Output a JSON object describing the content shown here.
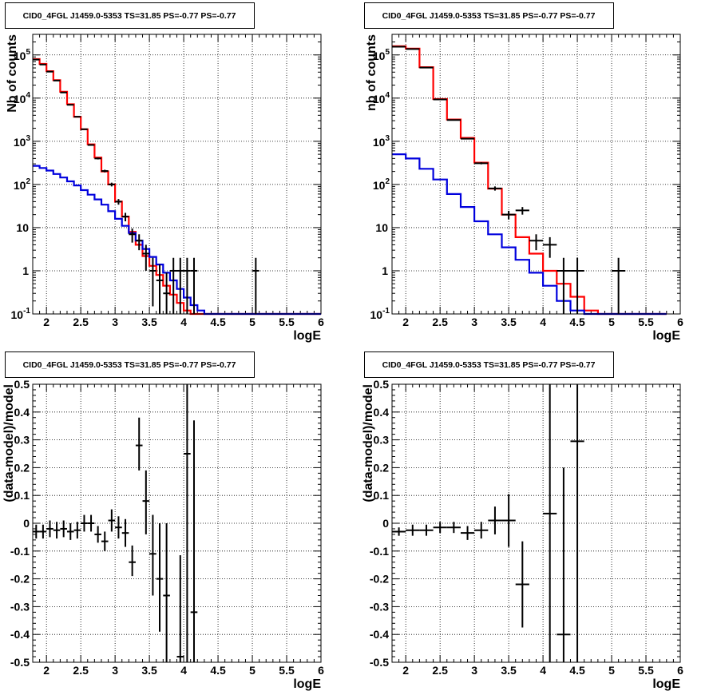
{
  "chart_data": [
    {
      "type": "line",
      "title": "CID0_4FGL J1459.0-5353 TS=31.85 PS=-0.77 PS=-0.77",
      "xlabel": "logE",
      "ylabel": "Nb of counts",
      "xlim": [
        1.8,
        6.0
      ],
      "ylim": [
        0.1,
        300000
      ],
      "ylog": true,
      "grid": true,
      "x_ticks": [
        2,
        2.5,
        3,
        3.5,
        4,
        4.5,
        5,
        5.5,
        6
      ],
      "x_tick_labels": [
        "2",
        "2.5",
        "3",
        "3.5",
        "4",
        "4.5",
        "5",
        "5.5",
        "6"
      ],
      "y_tick_labels": [
        "10^-1",
        "1",
        "10",
        "10^2",
        "10^3",
        "10^4",
        "10^5"
      ],
      "bin_edges": [
        1.8,
        1.9,
        2.0,
        2.1,
        2.2,
        2.3,
        2.4,
        2.5,
        2.6,
        2.7,
        2.8,
        2.9,
        3.0,
        3.1,
        3.2,
        3.3,
        3.4,
        3.5,
        3.6,
        3.7,
        3.8,
        3.9,
        4.0,
        4.1,
        4.2,
        4.3,
        4.4,
        4.5,
        4.6,
        4.7,
        4.8,
        4.9,
        5.0,
        5.1,
        5.2,
        5.3,
        5.4,
        5.5,
        5.6,
        5.7,
        5.8,
        5.9,
        6.0
      ],
      "series": [
        {
          "color": "#ff0000",
          "style": "step",
          "values": [
            80000,
            62000,
            42000,
            26000,
            14000,
            7200,
            3700,
            1900,
            850,
            420,
            200,
            100,
            40,
            18,
            8,
            4,
            2.2,
            1.3,
            0.8,
            0.45,
            0.28,
            0.18,
            0.12,
            0.1,
            0.1,
            0.1,
            0.1,
            0.1,
            0.1,
            0.1,
            0.1,
            0.1,
            0.1,
            0.1,
            0.1,
            0.1,
            0.1,
            0.1,
            0.1,
            0.1,
            0.1,
            0.1
          ]
        },
        {
          "color": "#0000dd",
          "style": "step",
          "values": [
            270,
            240,
            210,
            175,
            145,
            118,
            95,
            74,
            58,
            45,
            34,
            24,
            16,
            11,
            7.5,
            5,
            3.2,
            2.1,
            1.4,
            0.9,
            0.6,
            0.38,
            0.24,
            0.16,
            0.12,
            0.1,
            0.1,
            0.1,
            0.1,
            0.1,
            0.1,
            0.1,
            0.1,
            0.1,
            0.1,
            0.1,
            0.1,
            0.1,
            0.1,
            0.1,
            0.1,
            0.1
          ]
        },
        {
          "color": "#000000",
          "style": "errorbar",
          "points": [
            {
              "x": 1.85,
              "y": 78000,
              "lo": 77500,
              "hi": 78500,
              "dx": 0.05
            },
            {
              "x": 1.95,
              "y": 60000,
              "lo": 59500,
              "hi": 60500,
              "dx": 0.05
            },
            {
              "x": 2.05,
              "y": 41000,
              "lo": 40600,
              "hi": 41400,
              "dx": 0.05
            },
            {
              "x": 2.15,
              "y": 25500,
              "lo": 25200,
              "hi": 25800,
              "dx": 0.05
            },
            {
              "x": 2.25,
              "y": 13500,
              "lo": 13300,
              "hi": 13700,
              "dx": 0.05
            },
            {
              "x": 2.35,
              "y": 7000,
              "lo": 6900,
              "hi": 7100,
              "dx": 0.05
            },
            {
              "x": 2.45,
              "y": 3700,
              "lo": 3640,
              "hi": 3760,
              "dx": 0.05
            },
            {
              "x": 2.55,
              "y": 1900,
              "lo": 1860,
              "hi": 1940,
              "dx": 0.05
            },
            {
              "x": 2.65,
              "y": 820,
              "lo": 790,
              "hi": 850,
              "dx": 0.05
            },
            {
              "x": 2.75,
              "y": 400,
              "lo": 380,
              "hi": 420,
              "dx": 0.05
            },
            {
              "x": 2.85,
              "y": 205,
              "lo": 191,
              "hi": 219,
              "dx": 0.05
            },
            {
              "x": 2.95,
              "y": 100,
              "lo": 90,
              "hi": 110,
              "dx": 0.05
            },
            {
              "x": 3.05,
              "y": 40,
              "lo": 34,
              "hi": 46,
              "dx": 0.05
            },
            {
              "x": 3.15,
              "y": 18,
              "lo": 14,
              "hi": 22,
              "dx": 0.05
            },
            {
              "x": 3.25,
              "y": 7,
              "lo": 4.5,
              "hi": 9.5,
              "dx": 0.05
            },
            {
              "x": 3.35,
              "y": 5,
              "lo": 3,
              "hi": 7,
              "dx": 0.05
            },
            {
              "x": 3.45,
              "y": 2.5,
              "lo": 1,
              "hi": 4,
              "dx": 0.05
            },
            {
              "x": 3.55,
              "y": 1.0,
              "lo": 0.15,
              "hi": 2.0,
              "dx": 0.05
            },
            {
              "x": 3.65,
              "y": 0.6,
              "lo": 0.1,
              "hi": 1.4,
              "dx": 0.05
            },
            {
              "x": 3.75,
              "y": 0.3,
              "lo": 0.1,
              "hi": 0.9,
              "dx": 0.05
            },
            {
              "x": 3.85,
              "y": 1.0,
              "lo": 0.1,
              "hi": 2.0,
              "dx": 0.05
            },
            {
              "x": 3.95,
              "y": 1.0,
              "lo": 0.1,
              "hi": 2.0,
              "dx": 0.05
            },
            {
              "x": 4.05,
              "y": 1.0,
              "lo": 0.1,
              "hi": 2.0,
              "dx": 0.05
            },
            {
              "x": 4.15,
              "y": 1.0,
              "lo": 0.1,
              "hi": 2.0,
              "dx": 0.05
            },
            {
              "x": 5.05,
              "y": 1.0,
              "lo": 0.1,
              "hi": 2.0,
              "dx": 0.05
            }
          ]
        }
      ]
    },
    {
      "type": "line",
      "title": "CID0_4FGL J1459.0-5353 TS=31.85 PS=-0.77 PS=-0.77",
      "xlabel": "logE",
      "ylabel": "nb of counts",
      "xlim": [
        1.8,
        6.0
      ],
      "ylim": [
        0.1,
        300000
      ],
      "ylog": true,
      "grid": true,
      "x_ticks": [
        2,
        2.5,
        3,
        3.5,
        4,
        4.5,
        5,
        5.5,
        6
      ],
      "x_tick_labels": [
        "2",
        "2.5",
        "3",
        "3.5",
        "4",
        "4.5",
        "5",
        "5.5",
        "6"
      ],
      "y_tick_labels": [
        "10^-1",
        "1",
        "10",
        "10^2",
        "10^3",
        "10^4",
        "10^5"
      ],
      "bin_edges": [
        1.8,
        2.0,
        2.2,
        2.4,
        2.6,
        2.8,
        3.0,
        3.2,
        3.4,
        3.6,
        3.8,
        4.0,
        4.2,
        4.4,
        4.6,
        4.8,
        5.0,
        5.2,
        5.4,
        5.6,
        5.8,
        6.0
      ],
      "series": [
        {
          "color": "#ff0000",
          "style": "step",
          "values": [
            160000,
            140000,
            52000,
            9500,
            3200,
            1200,
            320,
            80,
            20,
            6,
            2.5,
            1.0,
            0.5,
            0.25,
            0.12,
            0.1,
            0.1,
            0.1,
            0.1,
            0.1
          ]
        },
        {
          "color": "#0000dd",
          "style": "step",
          "values": [
            500,
            400,
            230,
            130,
            60,
            30,
            14,
            7,
            3.5,
            1.8,
            0.9,
            0.45,
            0.2,
            0.12,
            0.1,
            0.1,
            0.1,
            0.1,
            0.1,
            0.1
          ]
        },
        {
          "color": "#000000",
          "style": "errorbar",
          "points": [
            {
              "x": 1.9,
              "y": 155000,
              "lo": 154000,
              "hi": 156000,
              "dx": 0.1
            },
            {
              "x": 2.1,
              "y": 137000,
              "lo": 136000,
              "hi": 138000,
              "dx": 0.1
            },
            {
              "x": 2.3,
              "y": 51000,
              "lo": 50500,
              "hi": 51500,
              "dx": 0.1
            },
            {
              "x": 2.5,
              "y": 9300,
              "lo": 9200,
              "hi": 9400,
              "dx": 0.1
            },
            {
              "x": 2.7,
              "y": 3100,
              "lo": 3050,
              "hi": 3150,
              "dx": 0.1
            },
            {
              "x": 2.9,
              "y": 1150,
              "lo": 1120,
              "hi": 1180,
              "dx": 0.1
            },
            {
              "x": 3.1,
              "y": 310,
              "lo": 293,
              "hi": 327,
              "dx": 0.1
            },
            {
              "x": 3.3,
              "y": 81,
              "lo": 72,
              "hi": 90,
              "dx": 0.1
            },
            {
              "x": 3.5,
              "y": 20,
              "lo": 15.5,
              "hi": 24.5,
              "dx": 0.1
            },
            {
              "x": 3.7,
              "y": 25,
              "lo": 20,
              "hi": 30,
              "dx": 0.1
            },
            {
              "x": 3.9,
              "y": 5,
              "lo": 3,
              "hi": 7,
              "dx": 0.1
            },
            {
              "x": 4.1,
              "y": 4,
              "lo": 2,
              "hi": 6,
              "dx": 0.1
            },
            {
              "x": 4.3,
              "y": 1.0,
              "lo": 0.1,
              "hi": 2.0,
              "dx": 0.1
            },
            {
              "x": 4.5,
              "y": 1.0,
              "lo": 0.1,
              "hi": 2.0,
              "dx": 0.1
            },
            {
              "x": 5.1,
              "y": 1.0,
              "lo": 0.1,
              "hi": 2.0,
              "dx": 0.1
            }
          ]
        }
      ]
    },
    {
      "type": "scatter",
      "title": "CID0_4FGL J1459.0-5353 TS=31.85 PS=-0.77 PS=-0.77",
      "xlabel": "logE",
      "ylabel": "(data-model)/model",
      "xlim": [
        1.8,
        6.0
      ],
      "ylim": [
        -0.5,
        0.5
      ],
      "grid": true,
      "x_ticks": [
        2,
        2.5,
        3,
        3.5,
        4,
        4.5,
        5,
        5.5,
        6
      ],
      "x_tick_labels": [
        "2",
        "2.5",
        "3",
        "3.5",
        "4",
        "4.5",
        "5",
        "5.5",
        "6"
      ],
      "y_ticks": [
        -0.5,
        -0.4,
        -0.3,
        -0.2,
        -0.1,
        0,
        0.1,
        0.2,
        0.3,
        0.4,
        0.5
      ],
      "y_tick_labels": [
        "-0.5",
        "-0.4",
        "-0.3",
        "-0.2",
        "-0.1",
        "0",
        "0.1",
        "0.2",
        "0.3",
        "0.4",
        "0.5"
      ],
      "series": [
        {
          "color": "#000000",
          "style": "errorbar",
          "points": [
            {
              "x": 1.85,
              "y": -0.03,
              "lo": -0.055,
              "hi": -0.005,
              "dx": 0.05
            },
            {
              "x": 1.95,
              "y": -0.03,
              "lo": -0.055,
              "hi": -0.005,
              "dx": 0.05
            },
            {
              "x": 2.05,
              "y": -0.02,
              "lo": -0.05,
              "hi": 0.01,
              "dx": 0.05
            },
            {
              "x": 2.15,
              "y": -0.025,
              "lo": -0.055,
              "hi": 0.005,
              "dx": 0.05
            },
            {
              "x": 2.25,
              "y": -0.02,
              "lo": -0.05,
              "hi": 0.01,
              "dx": 0.05
            },
            {
              "x": 2.35,
              "y": -0.03,
              "lo": -0.06,
              "hi": 0.0,
              "dx": 0.05
            },
            {
              "x": 2.45,
              "y": -0.025,
              "lo": -0.055,
              "hi": 0.005,
              "dx": 0.05
            },
            {
              "x": 2.55,
              "y": 0.0,
              "lo": -0.03,
              "hi": 0.03,
              "dx": 0.05
            },
            {
              "x": 2.65,
              "y": 0.0,
              "lo": -0.03,
              "hi": 0.03,
              "dx": 0.05
            },
            {
              "x": 2.75,
              "y": -0.04,
              "lo": -0.07,
              "hi": -0.01,
              "dx": 0.05
            },
            {
              "x": 2.85,
              "y": -0.065,
              "lo": -0.1,
              "hi": -0.03,
              "dx": 0.05
            },
            {
              "x": 2.95,
              "y": 0.01,
              "lo": -0.03,
              "hi": 0.05,
              "dx": 0.05
            },
            {
              "x": 3.05,
              "y": -0.015,
              "lo": -0.055,
              "hi": 0.025,
              "dx": 0.05
            },
            {
              "x": 3.15,
              "y": -0.035,
              "lo": -0.085,
              "hi": 0.015,
              "dx": 0.05
            },
            {
              "x": 3.25,
              "y": -0.14,
              "lo": -0.19,
              "hi": -0.08,
              "dx": 0.05
            },
            {
              "x": 3.35,
              "y": 0.28,
              "lo": 0.19,
              "hi": 0.38,
              "dx": 0.05
            },
            {
              "x": 3.45,
              "y": 0.08,
              "lo": -0.04,
              "hi": 0.19,
              "dx": 0.05
            },
            {
              "x": 3.55,
              "y": -0.11,
              "lo": -0.26,
              "hi": 0.03,
              "dx": 0.05
            },
            {
              "x": 3.65,
              "y": -0.2,
              "lo": -0.39,
              "hi": 0.0,
              "dx": 0.05
            },
            {
              "x": 3.75,
              "y": -0.26,
              "lo": -0.5,
              "hi": 0.0,
              "dx": 0.05
            },
            {
              "x": 3.95,
              "y": -0.48,
              "lo": -0.5,
              "hi": -0.115,
              "dx": 0.05
            },
            {
              "x": 4.05,
              "y": 0.25,
              "lo": -0.5,
              "hi": 0.5,
              "dx": 0.05
            },
            {
              "x": 4.15,
              "y": -0.32,
              "lo": -0.5,
              "hi": 0.37,
              "dx": 0.05
            }
          ]
        }
      ]
    },
    {
      "type": "scatter",
      "title": "CID0_4FGL J1459.0-5353 TS=31.85 PS=-0.77 PS=-0.77",
      "xlabel": "logE",
      "ylabel": "(data-model)/model",
      "xlim": [
        1.8,
        6.0
      ],
      "ylim": [
        -0.5,
        0.5
      ],
      "grid": true,
      "x_ticks": [
        2,
        2.5,
        3,
        3.5,
        4,
        4.5,
        5,
        5.5,
        6
      ],
      "x_tick_labels": [
        "2",
        "2.5",
        "3",
        "3.5",
        "4",
        "4.5",
        "5",
        "5.5",
        "6"
      ],
      "y_ticks": [
        -0.5,
        -0.4,
        -0.3,
        -0.2,
        -0.1,
        0,
        0.1,
        0.2,
        0.3,
        0.4,
        0.5
      ],
      "y_tick_labels": [
        "-0.5",
        "-0.4",
        "-0.3",
        "-0.2",
        "-0.1",
        "0",
        "0.1",
        "0.2",
        "0.3",
        "0.4",
        "0.5"
      ],
      "series": [
        {
          "color": "#000000",
          "style": "errorbar",
          "points": [
            {
              "x": 1.9,
              "y": -0.03,
              "lo": -0.045,
              "hi": -0.015,
              "dx": 0.1
            },
            {
              "x": 2.1,
              "y": -0.025,
              "lo": -0.045,
              "hi": -0.005,
              "dx": 0.1
            },
            {
              "x": 2.3,
              "y": -0.025,
              "lo": -0.045,
              "hi": -0.005,
              "dx": 0.1
            },
            {
              "x": 2.5,
              "y": -0.015,
              "lo": -0.035,
              "hi": 0.005,
              "dx": 0.1
            },
            {
              "x": 2.7,
              "y": -0.015,
              "lo": -0.035,
              "hi": 0.005,
              "dx": 0.1
            },
            {
              "x": 2.9,
              "y": -0.035,
              "lo": -0.06,
              "hi": -0.01,
              "dx": 0.1
            },
            {
              "x": 3.1,
              "y": -0.025,
              "lo": -0.055,
              "hi": 0.005,
              "dx": 0.1
            },
            {
              "x": 3.3,
              "y": 0.01,
              "lo": -0.04,
              "hi": 0.06,
              "dx": 0.1
            },
            {
              "x": 3.5,
              "y": 0.01,
              "lo": -0.085,
              "hi": 0.105,
              "dx": 0.1
            },
            {
              "x": 3.7,
              "y": -0.22,
              "lo": -0.375,
              "hi": -0.065,
              "dx": 0.1
            },
            {
              "x": 4.1,
              "y": 0.035,
              "lo": -0.5,
              "hi": 0.5,
              "dx": 0.1
            },
            {
              "x": 4.3,
              "y": -0.4,
              "lo": -0.5,
              "hi": 0.2,
              "dx": 0.1
            },
            {
              "x": 4.5,
              "y": 0.295,
              "lo": -0.5,
              "hi": 0.5,
              "dx": 0.1
            }
          ]
        }
      ]
    }
  ]
}
